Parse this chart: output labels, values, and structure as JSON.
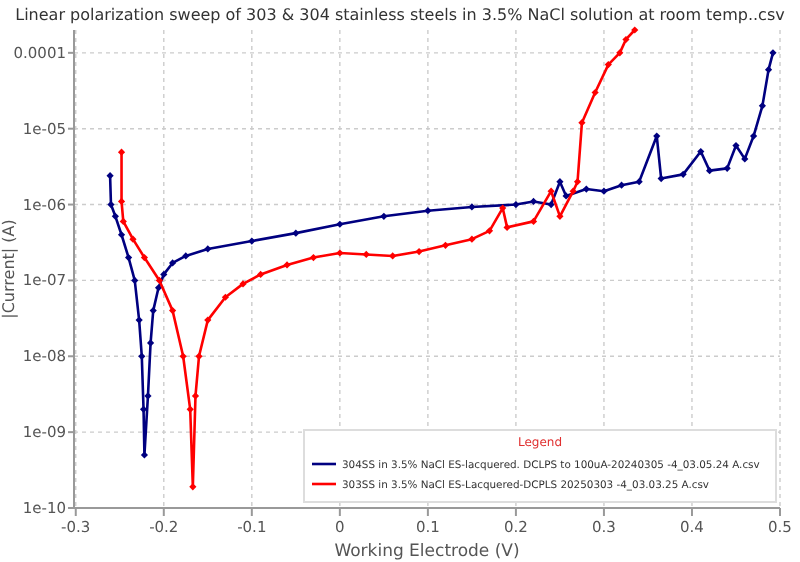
{
  "chart_data": {
    "type": "line",
    "title": "Linear polarization sweep of 303 & 304 stainless steels in 3.5% NaCl solution at room temp..csv",
    "xlabel": "Working Electrode (V)",
    "ylabel": "|Current| (A)",
    "legend_title": "Legend",
    "log": "y",
    "grid": true,
    "legend": "bottom right",
    "marker": "diamond",
    "line_style": "solid",
    "xlim": [
      -0.302,
      0.5
    ],
    "xticks": [
      -0.3,
      -0.2,
      -0.1,
      0,
      0.1,
      0.2,
      0.3,
      0.4,
      0.5
    ],
    "ylim": [
      1e-10,
      0.0002
    ],
    "yticks": [
      {
        "value": 1e-10,
        "label": "1e-10"
      },
      {
        "value": 1e-09,
        "label": "1e-09"
      },
      {
        "value": 1e-08,
        "label": "1e-08"
      },
      {
        "value": 1e-07,
        "label": "1e-07"
      },
      {
        "value": 1e-06,
        "label": "1e-06"
      },
      {
        "value": 1e-05,
        "label": "1e-05"
      },
      {
        "value": 0.0001,
        "label": "0.0001"
      }
    ],
    "series": [
      {
        "name": "304SS in 3.5% NaCl ES-lacquered. DCLPS to 100uA-20240305 -4_03.05.24 A.csv",
        "color": "#000080",
        "x": [
          -0.261,
          -0.26,
          -0.255,
          -0.248,
          -0.24,
          -0.233,
          -0.228,
          -0.225,
          -0.223,
          -0.222,
          -0.218,
          -0.215,
          -0.212,
          -0.206,
          -0.2,
          -0.19,
          -0.175,
          -0.15,
          -0.1,
          -0.05,
          0,
          0.05,
          0.1,
          0.15,
          0.2,
          0.22,
          0.24,
          0.25,
          0.257,
          0.28,
          0.3,
          0.32,
          0.34,
          0.36,
          0.365,
          0.39,
          0.41,
          0.42,
          0.44,
          0.45,
          0.46,
          0.47,
          0.48,
          0.487,
          0.492
        ],
        "values": [
          2.4e-06,
          1e-06,
          7e-07,
          4e-07,
          2e-07,
          1e-07,
          3e-08,
          1e-08,
          2e-09,
          5e-10,
          3e-09,
          1.5e-08,
          4e-08,
          8e-08,
          1.2e-07,
          1.7e-07,
          2.1e-07,
          2.6e-07,
          3.3e-07,
          4.2e-07,
          5.5e-07,
          7e-07,
          8.3e-07,
          9.3e-07,
          1e-06,
          1.1e-06,
          1e-06,
          2e-06,
          1.3e-06,
          1.6e-06,
          1.5e-06,
          1.8e-06,
          2e-06,
          8e-06,
          2.2e-06,
          2.5e-06,
          5e-06,
          2.8e-06,
          3e-06,
          6e-06,
          4e-06,
          8e-06,
          2e-05,
          6e-05,
          0.0001
        ]
      },
      {
        "name": "303SS in 3.5% NaCl ES-Lacquered-DCPLS 20250303 -4_03.03.25 A.csv",
        "color": "#ff0000",
        "x": [
          -0.248,
          -0.248,
          -0.246,
          -0.235,
          -0.222,
          -0.205,
          -0.19,
          -0.178,
          -0.17,
          -0.167,
          -0.164,
          -0.16,
          -0.15,
          -0.13,
          -0.11,
          -0.09,
          -0.06,
          -0.03,
          0,
          0.03,
          0.06,
          0.09,
          0.12,
          0.15,
          0.17,
          0.185,
          0.19,
          0.22,
          0.24,
          0.25,
          0.265,
          0.27,
          0.275,
          0.29,
          0.305,
          0.318,
          0.325,
          0.335
        ],
        "values": [
          4.9e-06,
          1.1e-06,
          6e-07,
          3.5e-07,
          2e-07,
          1e-07,
          4e-08,
          1e-08,
          2e-09,
          1.9e-10,
          3e-09,
          1e-08,
          3e-08,
          6e-08,
          9e-08,
          1.2e-07,
          1.6e-07,
          2e-07,
          2.3e-07,
          2.2e-07,
          2.1e-07,
          2.4e-07,
          2.9e-07,
          3.5e-07,
          4.5e-07,
          9e-07,
          5e-07,
          6e-07,
          1.5e-06,
          7e-07,
          1.5e-06,
          2e-06,
          1.2e-05,
          3e-05,
          7e-05,
          0.0001,
          0.00015,
          0.0002
        ]
      }
    ]
  }
}
